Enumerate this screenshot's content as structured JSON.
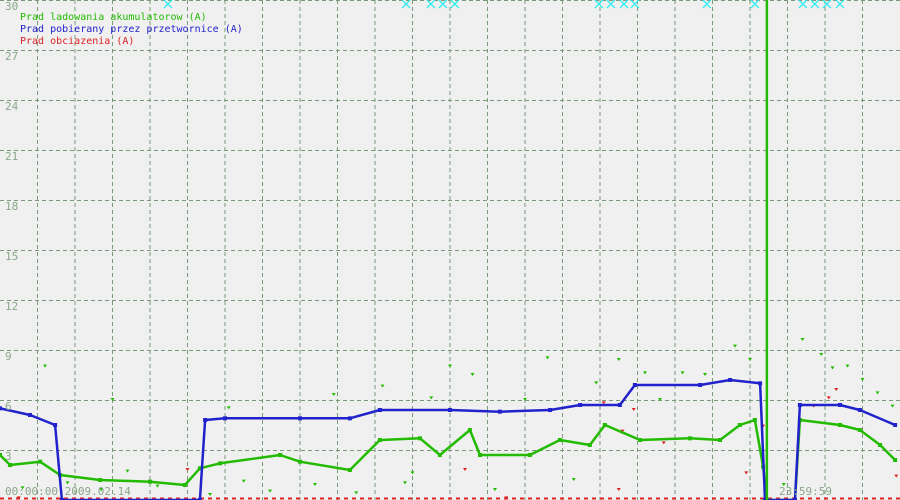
{
  "chart_data": {
    "type": "line",
    "title": "",
    "xlabel": "",
    "ylabel": "",
    "xlim_hours": [
      0,
      24
    ],
    "ylim": [
      0,
      30
    ],
    "y_ticks": [
      3,
      6,
      9,
      12,
      15,
      18,
      21,
      24,
      27,
      30
    ],
    "y_tick_labels": [
      "3",
      "6",
      "9",
      "12",
      "15",
      "18",
      "21",
      "24",
      "27",
      "30"
    ],
    "x_grid_step_hours": 1,
    "grid": true,
    "legend_placement": "top-left",
    "time_start_label": "00:00:00 2009.02.14",
    "time_end_label": "23:59:59 2009.02.14",
    "background": "#f0f0f0",
    "grid_color": "#7a9a7a",
    "series": [
      {
        "name": "Prad ladowania akumulatorow (A)",
        "color": "#22bb00",
        "points": [
          [
            0,
            2.7
          ],
          [
            0.27,
            2.1
          ],
          [
            1.07,
            2.3
          ],
          [
            1.6,
            1.5
          ],
          [
            2.67,
            1.2
          ],
          [
            4,
            1.1
          ],
          [
            4.93,
            0.9
          ],
          [
            5.33,
            1.9
          ],
          [
            5.87,
            2.2
          ],
          [
            7.47,
            2.7
          ],
          [
            8,
            2.3
          ],
          [
            9.33,
            1.8
          ],
          [
            10.13,
            3.6
          ],
          [
            11.2,
            3.7
          ],
          [
            11.73,
            2.7
          ],
          [
            12.53,
            4.2
          ],
          [
            12.8,
            2.7
          ],
          [
            14.13,
            2.7
          ],
          [
            14.93,
            3.6
          ],
          [
            15.73,
            3.3
          ],
          [
            16.13,
            4.5
          ],
          [
            17.07,
            3.6
          ],
          [
            18.4,
            3.7
          ],
          [
            19.2,
            3.6
          ],
          [
            19.73,
            4.5
          ],
          [
            20.13,
            4.8
          ],
          [
            20.35,
            2.0
          ],
          [
            20.45,
            0
          ],
          [
            21.2,
            0
          ],
          [
            21.33,
            4.8
          ],
          [
            22.4,
            4.5
          ],
          [
            22.93,
            4.2
          ],
          [
            23.47,
            3.3
          ],
          [
            23.87,
            2.4
          ]
        ]
      },
      {
        "name": "Prad pobierany przez przetwornice (A)",
        "color": "#2222cc",
        "points": [
          [
            0,
            5.5
          ],
          [
            0.8,
            5.1
          ],
          [
            1.47,
            4.5
          ],
          [
            1.65,
            0
          ],
          [
            5.33,
            0
          ],
          [
            5.47,
            4.8
          ],
          [
            6,
            4.9
          ],
          [
            8,
            4.9
          ],
          [
            9.33,
            4.9
          ],
          [
            10.13,
            5.4
          ],
          [
            12,
            5.4
          ],
          [
            13.33,
            5.3
          ],
          [
            14.67,
            5.4
          ],
          [
            15.47,
            5.7
          ],
          [
            16.53,
            5.7
          ],
          [
            16.93,
            6.9
          ],
          [
            18.67,
            6.9
          ],
          [
            19.47,
            7.2
          ],
          [
            20.27,
            7.0
          ],
          [
            20.4,
            0
          ],
          [
            21.2,
            0
          ],
          [
            21.33,
            5.7
          ],
          [
            22.4,
            5.7
          ],
          [
            22.93,
            5.4
          ],
          [
            23.87,
            4.5
          ]
        ]
      },
      {
        "name": "Prad obciazenia (A)",
        "color": "#dd2222",
        "points": [
          [
            5.0,
            1.8
          ],
          [
            12.4,
            1.8
          ],
          [
            16.1,
            5.8
          ],
          [
            16.6,
            4.1
          ],
          [
            16.9,
            5.4
          ],
          [
            17.7,
            3.4
          ],
          [
            19.9,
            1.6
          ],
          [
            20.35,
            4.4
          ],
          [
            21.7,
            5.6
          ],
          [
            22.1,
            6.1
          ],
          [
            22.3,
            6.6
          ],
          [
            23.9,
            1.4
          ],
          [
            0.5,
            0.1
          ],
          [
            13.5,
            0.1
          ],
          [
            16.5,
            0.6
          ]
        ]
      }
    ],
    "green_scatter": [
      [
        0.6,
        0.7
      ],
      [
        1.8,
        1.0
      ],
      [
        2.7,
        0.6
      ],
      [
        3.4,
        1.7
      ],
      [
        4.2,
        0.8
      ],
      [
        5.6,
        0.3
      ],
      [
        6.5,
        1.1
      ],
      [
        7.2,
        0.5
      ],
      [
        8.4,
        0.9
      ],
      [
        9.5,
        0.4
      ],
      [
        10.2,
        6.8
      ],
      [
        10.8,
        1.0
      ],
      [
        11.5,
        6.1
      ],
      [
        12.0,
        8.0
      ],
      [
        12.6,
        7.5
      ],
      [
        13.2,
        0.6
      ],
      [
        14.0,
        6.0
      ],
      [
        14.6,
        8.5
      ],
      [
        15.3,
        1.2
      ],
      [
        15.9,
        7.0
      ],
      [
        16.5,
        8.4
      ],
      [
        17.2,
        7.6
      ],
      [
        17.6,
        6.0
      ],
      [
        18.2,
        7.6
      ],
      [
        18.8,
        7.5
      ],
      [
        19.6,
        9.2
      ],
      [
        20.0,
        8.4
      ],
      [
        20.9,
        0.9
      ],
      [
        21.4,
        9.6
      ],
      [
        21.9,
        8.7
      ],
      [
        22.2,
        7.9
      ],
      [
        22.6,
        8.0
      ],
      [
        23.0,
        7.2
      ],
      [
        23.4,
        6.4
      ],
      [
        23.8,
        5.6
      ],
      [
        1.2,
        8.0
      ],
      [
        3.0,
        6.0
      ],
      [
        6.1,
        5.5
      ],
      [
        8.9,
        6.3
      ],
      [
        11.0,
        1.6
      ]
    ],
    "cursor_marker_hours": [
      4.48,
      10.83,
      11.49,
      11.81,
      12.13,
      15.97,
      16.29,
      16.64,
      16.93,
      18.85,
      20.13,
      21.41,
      21.73,
      22.05,
      22.4
    ],
    "cursor_marker_color": "#33eeee",
    "vertical_marker_hours": 20.45,
    "vertical_marker_color": "#22bb00"
  }
}
